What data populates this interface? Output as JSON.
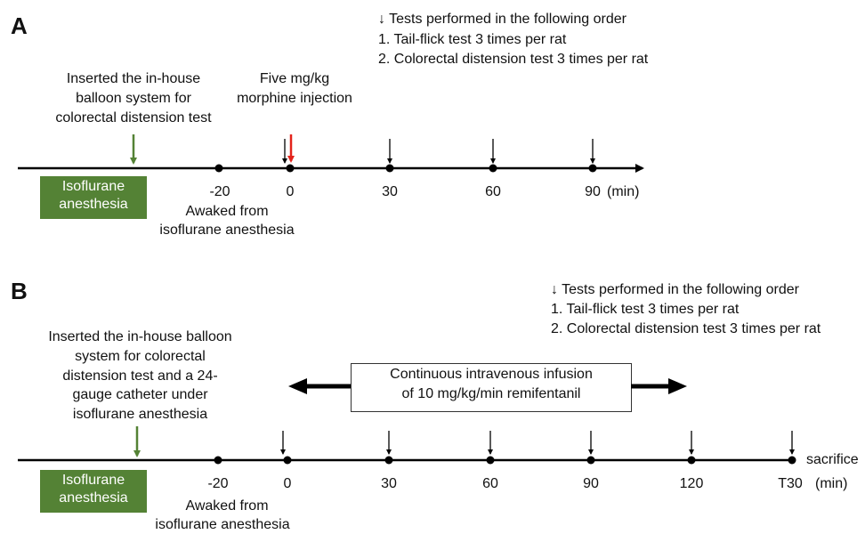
{
  "panel_a": {
    "label": "A",
    "legend": [
      "↓ Tests performed in the following order",
      "1. Tail-flick test 3 times per rat",
      "2. Colorectal distension test 3 times per rat"
    ],
    "balloon_note": [
      "Inserted the in-house",
      "balloon system for",
      "colorectal distension test"
    ],
    "morphine_note": [
      "Five mg/kg",
      "morphine injection"
    ],
    "anesthesia_box": [
      "Isoflurane",
      "anesthesia"
    ],
    "ticks": [
      "-20",
      "0",
      "30",
      "60",
      "90"
    ],
    "unit": "(min)",
    "awake_note": [
      "Awaked from",
      "isoflurane anesthesia"
    ]
  },
  "panel_b": {
    "label": "B",
    "legend": [
      "↓ Tests performed in the following order",
      "1. Tail-flick test 3 times per rat",
      "2. Colorectal distension test 3 times per rat"
    ],
    "balloon_note": [
      "Inserted the in-house balloon",
      "system for colorectal",
      "distension test and a 24-",
      "gauge catheter under",
      "isoflurane anesthesia"
    ],
    "infusion_note": [
      "Continuous intravenous infusion",
      "of 10 mg/kg/min remifentanil"
    ],
    "anesthesia_box": [
      "Isoflurane",
      "anesthesia"
    ],
    "ticks": [
      "-20",
      "0",
      "30",
      "60",
      "90",
      "120",
      "T30"
    ],
    "sacrifice": "sacrifice",
    "unit": "(min)",
    "awake_note": [
      "Awaked from",
      "isoflurane anesthesia"
    ]
  },
  "colors": {
    "green": "#548235",
    "red": "#e3231b",
    "black": "#000000"
  }
}
